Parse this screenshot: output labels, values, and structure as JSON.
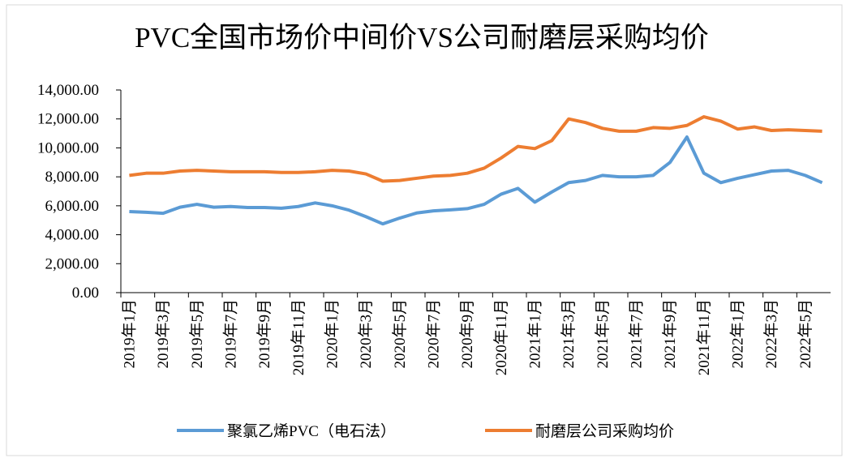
{
  "chart_data": {
    "type": "line",
    "title": "PVC全国市场价中间价VS公司耐磨层采购均价",
    "categories": [
      "2019年1月",
      null,
      "2019年3月",
      null,
      "2019年5月",
      null,
      "2019年7月",
      null,
      "2019年9月",
      null,
      "2019年11月",
      null,
      "2020年1月",
      null,
      "2020年3月",
      null,
      "2020年5月",
      null,
      "2020年7月",
      null,
      "2020年9月",
      null,
      "2020年11月",
      null,
      "2021年1月",
      null,
      "2021年3月",
      null,
      "2021年5月",
      null,
      "2021年7月",
      null,
      "2021年9月",
      null,
      "2021年11月",
      null,
      "2022年1月",
      null,
      "2022年3月",
      null,
      "2022年5月",
      null
    ],
    "series": [
      {
        "name": "聚氯乙烯PVC（电石法）",
        "color": "#5b9bd5",
        "values": [
          5600,
          5550,
          5480,
          5900,
          6100,
          5900,
          5950,
          5880,
          5880,
          5830,
          5950,
          6200,
          6000,
          5700,
          5250,
          4750,
          5150,
          5500,
          5650,
          5720,
          5800,
          6100,
          6800,
          7200,
          6250,
          6950,
          7600,
          7750,
          8100,
          8000,
          8000,
          8100,
          9000,
          10750,
          8250,
          7600,
          7900,
          8150,
          8400,
          8450,
          8100,
          7600
        ]
      },
      {
        "name": "耐磨层公司采购均价",
        "color": "#ed7d31",
        "values": [
          8100,
          8250,
          8250,
          8400,
          8450,
          8400,
          8350,
          8350,
          8350,
          8300,
          8300,
          8350,
          8450,
          8400,
          8200,
          7700,
          7750,
          7900,
          8050,
          8100,
          8250,
          8600,
          9300,
          10100,
          9950,
          10500,
          12000,
          11750,
          11350,
          11150,
          11150,
          11400,
          11350,
          11550,
          12150,
          11850,
          11300,
          11450,
          11200,
          11250,
          11200,
          11150
        ]
      }
    ],
    "ylim": [
      0,
      14000
    ],
    "yticks": [
      {
        "value": 0,
        "label": "0.00"
      },
      {
        "value": 2000,
        "label": "2,000.00"
      },
      {
        "value": 4000,
        "label": "4,000.00"
      },
      {
        "value": 6000,
        "label": "6,000.00"
      },
      {
        "value": 8000,
        "label": "8,000.00"
      },
      {
        "value": 10000,
        "label": "10,000.00"
      },
      {
        "value": 12000,
        "label": "12,000.00"
      },
      {
        "value": 14000,
        "label": "14,000.00"
      }
    ],
    "legend": "bottom"
  }
}
